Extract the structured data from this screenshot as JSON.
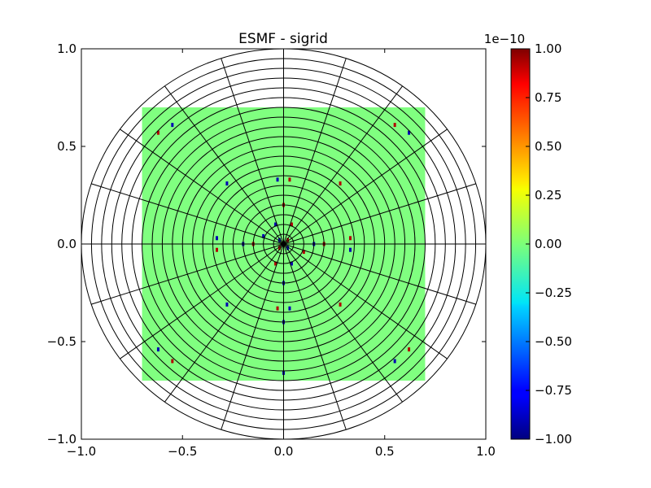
{
  "chart_data": {
    "type": "heatmap",
    "title": "ESMF - sigrid",
    "xlabel": "",
    "ylabel": "",
    "xlim": [
      -1.0,
      1.0
    ],
    "ylim": [
      -1.0,
      1.0
    ],
    "x_ticks": [
      "−1.0",
      "−0.5",
      "0.0",
      "0.5",
      "1.0"
    ],
    "y_ticks": [
      "−1.0",
      "−0.5",
      "0.0",
      "0.5",
      "1.0"
    ],
    "x_tick_values": [
      -1.0,
      -0.5,
      0.0,
      0.5,
      1.0
    ],
    "y_tick_values": [
      -1.0,
      -0.5,
      0.0,
      0.5,
      1.0
    ],
    "data_region": {
      "x": [
        -0.7,
        0.7
      ],
      "y": [
        -0.7,
        0.7
      ],
      "value": 0.0
    },
    "grid": {
      "type": "polar",
      "radii": [
        0.05,
        0.1,
        0.15,
        0.2,
        0.25,
        0.3,
        0.35,
        0.4,
        0.45,
        0.5,
        0.55,
        0.6,
        0.65,
        0.7,
        0.75,
        0.8,
        0.85,
        0.9,
        0.95,
        1.0
      ],
      "spoke_angles_deg": [
        0,
        18,
        36,
        54,
        72,
        90,
        108,
        126,
        144,
        162,
        180,
        198,
        216,
        234,
        252,
        270,
        288,
        306,
        324,
        342
      ]
    },
    "colorbar": {
      "colormap": "jet",
      "min": -1.0,
      "max": 1.0,
      "exponent_label": "1e−10",
      "ticks": [
        "1.00",
        "0.75",
        "0.50",
        "0.25",
        "0.00",
        "−0.25",
        "−0.50",
        "−0.75",
        "−1.00"
      ],
      "tick_values": [
        1.0,
        0.75,
        0.5,
        0.25,
        0.0,
        -0.25,
        -0.5,
        -0.75,
        -1.0
      ]
    },
    "anomalies": [
      {
        "x": -0.28,
        "y": 0.31,
        "value": -0.9
      },
      {
        "x": 0.28,
        "y": 0.31,
        "value": 0.9
      },
      {
        "x": -0.28,
        "y": -0.31,
        "value": -0.9
      },
      {
        "x": 0.28,
        "y": -0.31,
        "value": 0.9
      },
      {
        "x": -0.62,
        "y": 0.57,
        "value": 0.9
      },
      {
        "x": -0.55,
        "y": 0.61,
        "value": -0.9
      },
      {
        "x": 0.55,
        "y": 0.61,
        "value": 0.9
      },
      {
        "x": 0.62,
        "y": 0.57,
        "value": -0.9
      },
      {
        "x": -0.62,
        "y": -0.54,
        "value": -0.9
      },
      {
        "x": -0.55,
        "y": -0.6,
        "value": 0.9
      },
      {
        "x": 0.55,
        "y": -0.6,
        "value": -0.9
      },
      {
        "x": 0.62,
        "y": -0.54,
        "value": 0.9
      },
      {
        "x": -0.03,
        "y": 0.33,
        "value": -0.9
      },
      {
        "x": 0.03,
        "y": 0.33,
        "value": 0.9
      },
      {
        "x": -0.33,
        "y": 0.03,
        "value": -0.9
      },
      {
        "x": -0.33,
        "y": -0.03,
        "value": 0.9
      },
      {
        "x": 0.33,
        "y": 0.03,
        "value": 0.9
      },
      {
        "x": 0.33,
        "y": -0.03,
        "value": -0.9
      },
      {
        "x": -0.03,
        "y": -0.33,
        "value": 0.9
      },
      {
        "x": 0.03,
        "y": -0.33,
        "value": -0.9
      },
      {
        "x": 0.0,
        "y": -0.4,
        "value": -0.9
      },
      {
        "x": 0.0,
        "y": -0.66,
        "value": -0.9
      },
      {
        "x": -0.2,
        "y": 0.0,
        "value": -0.9
      },
      {
        "x": 0.2,
        "y": 0.0,
        "value": 0.9
      },
      {
        "x": -0.15,
        "y": 0.0,
        "value": 0.9
      },
      {
        "x": 0.15,
        "y": 0.0,
        "value": -0.9
      },
      {
        "x": 0.0,
        "y": 0.2,
        "value": 0.9
      },
      {
        "x": 0.0,
        "y": -0.2,
        "value": -0.9
      },
      {
        "x": -0.04,
        "y": 0.1,
        "value": -0.9
      },
      {
        "x": 0.04,
        "y": 0.1,
        "value": 0.9
      },
      {
        "x": -0.04,
        "y": -0.1,
        "value": 0.9
      },
      {
        "x": 0.04,
        "y": -0.1,
        "value": -0.9
      },
      {
        "x": -0.1,
        "y": 0.04,
        "value": -0.9
      },
      {
        "x": 0.1,
        "y": -0.04,
        "value": 0.9
      },
      {
        "x": -0.02,
        "y": 0.02,
        "value": -0.9
      },
      {
        "x": 0.02,
        "y": 0.02,
        "value": 0.9
      },
      {
        "x": -0.02,
        "y": -0.02,
        "value": 0.9
      },
      {
        "x": 0.02,
        "y": -0.02,
        "value": -0.9
      }
    ]
  }
}
